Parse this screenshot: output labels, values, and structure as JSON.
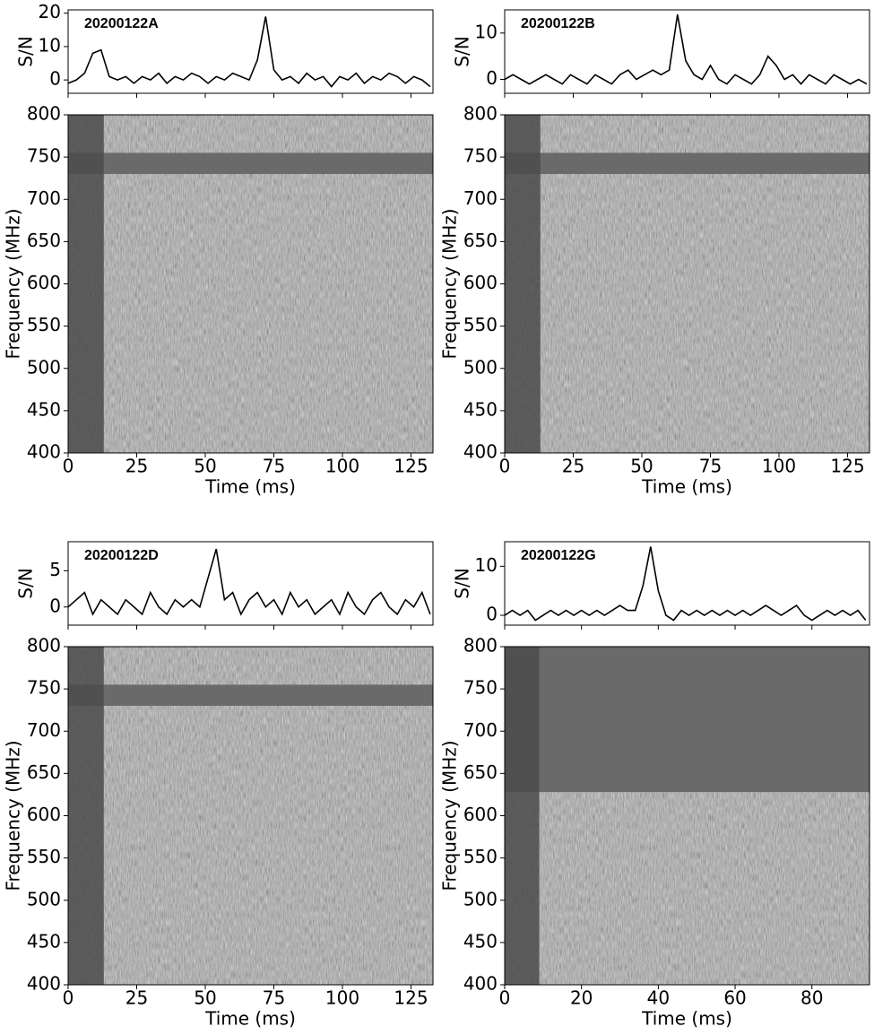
{
  "chart_data": [
    {
      "type": "line",
      "title": "20200122A",
      "ylabel": "S/N",
      "color": "#000000",
      "x": [
        0,
        3,
        6,
        9,
        12,
        15,
        18,
        21,
        24,
        27,
        30,
        33,
        36,
        39,
        42,
        45,
        48,
        51,
        54,
        57,
        60,
        63,
        66,
        69,
        72,
        75,
        78,
        81,
        84,
        87,
        90,
        93,
        96,
        99,
        102,
        105,
        108,
        111,
        114,
        117,
        120,
        123,
        126,
        129,
        132
      ],
      "values": [
        -1,
        0,
        2,
        8,
        9,
        1,
        0,
        1,
        -1,
        1,
        0,
        2,
        -1,
        1,
        0,
        2,
        1,
        -1,
        1,
        0,
        2,
        1,
        0,
        6,
        19,
        3,
        0,
        1,
        -1,
        2,
        0,
        1,
        -2,
        1,
        0,
        2,
        -1,
        1,
        0,
        2,
        1,
        -1,
        1,
        0,
        -2
      ],
      "xlim": [
        0,
        133
      ],
      "xticks": [
        0,
        25,
        50,
        75,
        100,
        125
      ],
      "ylim": [
        -4,
        21
      ],
      "yticks": [
        0,
        10,
        20
      ]
    },
    {
      "type": "heatmap",
      "xlabel": "Time (ms)",
      "ylabel": "Frequency (MHz)",
      "strip_time": [
        0,
        13
      ],
      "masked_freq": [
        [
          730,
          755
        ]
      ],
      "xlim": [
        0,
        133
      ],
      "xticks": [
        0,
        25,
        50,
        75,
        100,
        125
      ],
      "ylim": [
        400,
        800
      ],
      "yticks": [
        400,
        450,
        500,
        550,
        600,
        650,
        700,
        750,
        800
      ]
    },
    {
      "type": "line",
      "title": "20200122B",
      "ylabel": "S/N",
      "color": "#000000",
      "x": [
        0,
        3,
        6,
        9,
        12,
        15,
        18,
        21,
        24,
        27,
        30,
        33,
        36,
        39,
        42,
        45,
        48,
        51,
        54,
        57,
        60,
        63,
        66,
        69,
        72,
        75,
        78,
        81,
        84,
        87,
        90,
        93,
        96,
        99,
        102,
        105,
        108,
        111,
        114,
        117,
        120,
        123,
        126,
        129,
        132
      ],
      "values": [
        0,
        1,
        0,
        -1,
        0,
        1,
        0,
        -1,
        1,
        0,
        -1,
        1,
        0,
        -1,
        1,
        2,
        0,
        1,
        2,
        1,
        2,
        14,
        4,
        1,
        0,
        3,
        0,
        -1,
        1,
        0,
        -1,
        1,
        5,
        3,
        0,
        1,
        -1,
        1,
        0,
        -1,
        1,
        0,
        -1,
        0,
        -1
      ],
      "xlim": [
        0,
        133
      ],
      "xticks": [
        0,
        25,
        50,
        75,
        100,
        125
      ],
      "ylim": [
        -3,
        15
      ],
      "yticks": [
        0,
        10
      ]
    },
    {
      "type": "heatmap",
      "xlabel": "Time (ms)",
      "ylabel": "Frequency (MHz)",
      "strip_time": [
        0,
        13
      ],
      "masked_freq": [
        [
          730,
          755
        ]
      ],
      "xlim": [
        0,
        133
      ],
      "xticks": [
        0,
        25,
        50,
        75,
        100,
        125
      ],
      "ylim": [
        400,
        800
      ],
      "yticks": [
        400,
        450,
        500,
        550,
        600,
        650,
        700,
        750,
        800
      ]
    },
    {
      "type": "line",
      "title": "20200122D",
      "ylabel": "S/N",
      "color": "#000000",
      "x": [
        0,
        3,
        6,
        9,
        12,
        15,
        18,
        21,
        24,
        27,
        30,
        33,
        36,
        39,
        42,
        45,
        48,
        51,
        54,
        57,
        60,
        63,
        66,
        69,
        72,
        75,
        78,
        81,
        84,
        87,
        90,
        93,
        96,
        99,
        102,
        105,
        108,
        111,
        114,
        117,
        120,
        123,
        126,
        129,
        132
      ],
      "values": [
        0,
        1,
        2,
        -1,
        1,
        0,
        -1,
        1,
        0,
        -1,
        2,
        0,
        -1,
        1,
        0,
        1,
        0,
        4,
        8,
        1,
        2,
        -1,
        1,
        2,
        0,
        1,
        -1,
        2,
        0,
        1,
        -1,
        0,
        1,
        -1,
        2,
        0,
        -1,
        1,
        2,
        0,
        -1,
        1,
        0,
        2,
        -1
      ],
      "xlim": [
        0,
        133
      ],
      "xticks": [
        0,
        25,
        50,
        75,
        100,
        125
      ],
      "ylim": [
        -2.5,
        9
      ],
      "yticks": [
        0,
        5
      ]
    },
    {
      "type": "heatmap",
      "xlabel": "Time (ms)",
      "ylabel": "Frequency (MHz)",
      "strip_time": [
        0,
        13
      ],
      "masked_freq": [
        [
          730,
          755
        ]
      ],
      "xlim": [
        0,
        133
      ],
      "xticks": [
        0,
        25,
        50,
        75,
        100,
        125
      ],
      "ylim": [
        400,
        800
      ],
      "yticks": [
        400,
        450,
        500,
        550,
        600,
        650,
        700,
        750,
        800
      ]
    },
    {
      "type": "line",
      "title": "20200122G",
      "ylabel": "S/N",
      "color": "#000000",
      "x": [
        0,
        2,
        4,
        6,
        8,
        10,
        12,
        14,
        16,
        18,
        20,
        22,
        24,
        26,
        28,
        30,
        32,
        34,
        36,
        38,
        40,
        42,
        44,
        46,
        48,
        50,
        52,
        54,
        56,
        58,
        60,
        62,
        64,
        66,
        68,
        70,
        72,
        74,
        76,
        78,
        80,
        82,
        84,
        86,
        88,
        90,
        92,
        94
      ],
      "values": [
        0,
        1,
        0,
        1,
        -1,
        0,
        1,
        0,
        1,
        0,
        1,
        0,
        1,
        0,
        1,
        2,
        1,
        1,
        6,
        14,
        5,
        0,
        -1,
        1,
        0,
        1,
        0,
        1,
        0,
        1,
        0,
        1,
        0,
        1,
        2,
        1,
        0,
        1,
        2,
        0,
        -1,
        0,
        1,
        0,
        1,
        0,
        1,
        -1
      ],
      "xlim": [
        0,
        95
      ],
      "xticks": [
        0,
        20,
        40,
        60,
        80
      ],
      "ylim": [
        -2,
        15
      ],
      "yticks": [
        0,
        10
      ]
    },
    {
      "type": "heatmap",
      "xlabel": "Time (ms)",
      "ylabel": "Frequency (MHz)",
      "strip_time": [
        0,
        9
      ],
      "masked_freq": [
        [
          628,
          800
        ]
      ],
      "xlim": [
        0,
        95
      ],
      "xticks": [
        0,
        20,
        40,
        60,
        80
      ],
      "ylim": [
        400,
        800
      ],
      "yticks": [
        400,
        450,
        500,
        550,
        600,
        650,
        700,
        750,
        800
      ]
    }
  ]
}
